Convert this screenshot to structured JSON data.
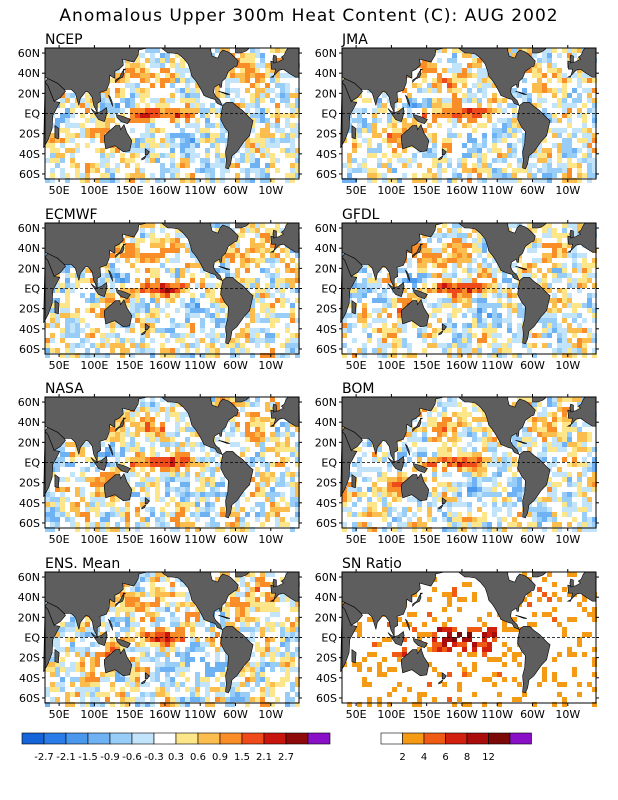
{
  "title": "Anomalous Upper 300m Heat Content (C): AUG 2002",
  "ocean_color": "#ffffff",
  "land_color": "#5e5e5e",
  "chart_data": [
    {
      "type": "heatmap",
      "title": "NCEP",
      "x_ticks": [
        "50E",
        "100E",
        "150E",
        "160W",
        "110W",
        "60W",
        "10W"
      ],
      "y_ticks": [
        "60N",
        "40N",
        "20N",
        "EQ",
        "20S",
        "40S",
        "60S"
      ],
      "ylim": [
        -65,
        65
      ],
      "equator_dashed": true,
      "scale": "anomaly"
    },
    {
      "type": "heatmap",
      "title": "JMA",
      "x_ticks": [
        "50E",
        "100E",
        "150E",
        "160W",
        "110W",
        "60W",
        "10W"
      ],
      "y_ticks": [
        "60N",
        "40N",
        "20N",
        "EQ",
        "20S",
        "40S",
        "60S"
      ],
      "ylim": [
        -65,
        65
      ],
      "equator_dashed": true,
      "scale": "anomaly"
    },
    {
      "type": "heatmap",
      "title": "ECMWF",
      "x_ticks": [
        "50E",
        "100E",
        "150E",
        "160W",
        "110W",
        "60W",
        "10W"
      ],
      "y_ticks": [
        "60N",
        "40N",
        "20N",
        "EQ",
        "20S",
        "40S",
        "60S"
      ],
      "ylim": [
        -65,
        65
      ],
      "equator_dashed": true,
      "scale": "anomaly"
    },
    {
      "type": "heatmap",
      "title": "GFDL",
      "x_ticks": [
        "50E",
        "100E",
        "150E",
        "160W",
        "110W",
        "60W",
        "10W"
      ],
      "y_ticks": [
        "60N",
        "40N",
        "20N",
        "EQ",
        "20S",
        "40S",
        "60S"
      ],
      "ylim": [
        -65,
        65
      ],
      "equator_dashed": true,
      "scale": "anomaly"
    },
    {
      "type": "heatmap",
      "title": "NASA",
      "x_ticks": [
        "50E",
        "100E",
        "150E",
        "160W",
        "110W",
        "60W",
        "10W"
      ],
      "y_ticks": [
        "60N",
        "40N",
        "20N",
        "EQ",
        "20S",
        "40S",
        "60S"
      ],
      "ylim": [
        -65,
        65
      ],
      "equator_dashed": true,
      "scale": "anomaly"
    },
    {
      "type": "heatmap",
      "title": "BOM",
      "x_ticks": [
        "50E",
        "100E",
        "150E",
        "160W",
        "110W",
        "60W",
        "10W"
      ],
      "y_ticks": [
        "60N",
        "40N",
        "20N",
        "EQ",
        "20S",
        "40S",
        "60S"
      ],
      "ylim": [
        -65,
        65
      ],
      "equator_dashed": true,
      "scale": "anomaly"
    },
    {
      "type": "heatmap",
      "title": "ENS. Mean",
      "x_ticks": [
        "50E",
        "100E",
        "150E",
        "160W",
        "110W",
        "60W",
        "10W"
      ],
      "y_ticks": [
        "60N",
        "40N",
        "20N",
        "EQ",
        "20S",
        "40S",
        "60S"
      ],
      "ylim": [
        -65,
        65
      ],
      "equator_dashed": true,
      "scale": "anomaly"
    },
    {
      "type": "heatmap",
      "title": "SN Ratio",
      "x_ticks": [
        "50E",
        "100E",
        "150E",
        "160W",
        "110W",
        "60W",
        "10W"
      ],
      "y_ticks": [
        "60N",
        "40N",
        "20N",
        "EQ",
        "20S",
        "40S",
        "60S"
      ],
      "ylim": [
        -65,
        65
      ],
      "equator_dashed": true,
      "scale": "snr"
    }
  ],
  "legends": {
    "anomaly": {
      "colors": [
        "#1565d8",
        "#2a7de8",
        "#4a98ee",
        "#6fb2f4",
        "#98cdf8",
        "#c2e4fb",
        "#ffffff",
        "#fde68a",
        "#fbbd4e",
        "#f98d28",
        "#ef4a1a",
        "#c8160e",
        "#8e0a0a",
        "#8a10c8"
      ],
      "tick_labels": [
        "-2.7",
        "-2.1",
        "-1.5",
        "-0.9",
        "-0.6",
        "-0.3",
        "0.3",
        "0.6",
        "0.9",
        "1.5",
        "2.1",
        "2.7"
      ]
    },
    "snr": {
      "colors": [
        "#ffffff",
        "#f59a14",
        "#ef5a14",
        "#d2200e",
        "#aa0c0c",
        "#7c0808",
        "#8a10c8"
      ],
      "tick_labels": [
        "2",
        "4",
        "6",
        "8",
        "12"
      ]
    }
  }
}
